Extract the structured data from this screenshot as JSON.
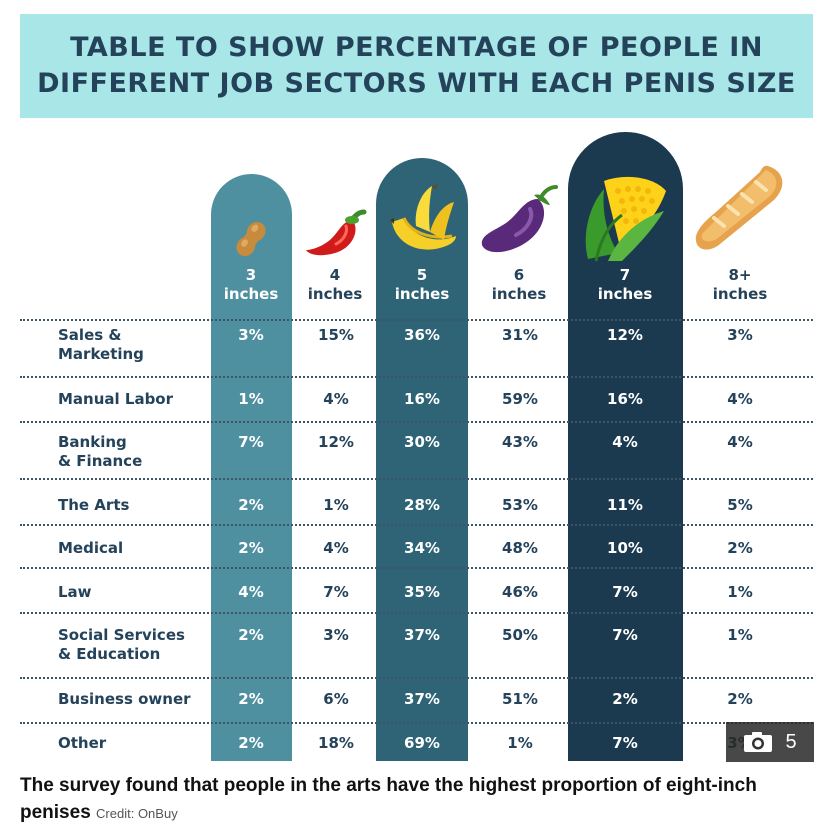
{
  "title_lines": [
    "TABLE TO SHOW PERCENTAGE OF PEOPLE IN",
    "DIFFERENT JOB SECTORS WITH EACH PENIS SIZE"
  ],
  "columns": [
    {
      "num": "3",
      "unit": "inches",
      "icon": "peanut-icon"
    },
    {
      "num": "4",
      "unit": "inches",
      "icon": "chili-pepper-icon"
    },
    {
      "num": "5",
      "unit": "inches",
      "icon": "banana-icon"
    },
    {
      "num": "6",
      "unit": "inches",
      "icon": "eggplant-icon"
    },
    {
      "num": "7",
      "unit": "inches",
      "icon": "corn-icon"
    },
    {
      "num": "8+",
      "unit": "inches",
      "icon": "baguette-icon"
    }
  ],
  "rows": [
    {
      "label_lines": [
        "Sales &",
        "Marketing"
      ],
      "values": [
        "3%",
        "15%",
        "36%",
        "31%",
        "12%",
        "3%"
      ]
    },
    {
      "label_lines": [
        "Manual Labor"
      ],
      "values": [
        "1%",
        "4%",
        "16%",
        "59%",
        "16%",
        "4%"
      ]
    },
    {
      "label_lines": [
        "Banking",
        "& Finance"
      ],
      "values": [
        "7%",
        "12%",
        "30%",
        "43%",
        "4%",
        "4%"
      ]
    },
    {
      "label_lines": [
        "The Arts"
      ],
      "values": [
        "2%",
        "1%",
        "28%",
        "53%",
        "11%",
        "5%"
      ]
    },
    {
      "label_lines": [
        "Medical"
      ],
      "values": [
        "2%",
        "4%",
        "34%",
        "48%",
        "10%",
        "2%"
      ]
    },
    {
      "label_lines": [
        "Law"
      ],
      "values": [
        "4%",
        "7%",
        "35%",
        "46%",
        "7%",
        "1%"
      ]
    },
    {
      "label_lines": [
        "Social Services",
        "& Education"
      ],
      "values": [
        "2%",
        "3%",
        "37%",
        "50%",
        "7%",
        "1%"
      ]
    },
    {
      "label_lines": [
        "Business owner"
      ],
      "values": [
        "2%",
        "6%",
        "37%",
        "51%",
        "2%",
        "2%"
      ]
    },
    {
      "label_lines": [
        "Other"
      ],
      "values": [
        "2%",
        "18%",
        "69%",
        "1%",
        "7%",
        "3%"
      ]
    }
  ],
  "chart_data": {
    "type": "table",
    "title": "TABLE TO SHOW PERCENTAGE OF PEOPLE IN DIFFERENT JOB SECTORS WITH EACH PENIS SIZE",
    "categories": [
      "Sales & Marketing",
      "Manual Labor",
      "Banking & Finance",
      "The Arts",
      "Medical",
      "Law",
      "Social Services & Education",
      "Business owner",
      "Other"
    ],
    "series": [
      {
        "name": "3 inches",
        "values": [
          3,
          1,
          7,
          2,
          2,
          4,
          2,
          2,
          2
        ]
      },
      {
        "name": "4 inches",
        "values": [
          15,
          4,
          12,
          1,
          4,
          7,
          3,
          6,
          18
        ]
      },
      {
        "name": "5 inches",
        "values": [
          36,
          16,
          30,
          28,
          34,
          35,
          37,
          37,
          69
        ]
      },
      {
        "name": "6 inches",
        "values": [
          31,
          59,
          43,
          53,
          48,
          46,
          50,
          51,
          1
        ]
      },
      {
        "name": "7 inches",
        "values": [
          12,
          16,
          4,
          11,
          10,
          7,
          7,
          2,
          7
        ]
      },
      {
        "name": "8+ inches",
        "values": [
          3,
          4,
          4,
          5,
          2,
          1,
          1,
          2,
          3
        ]
      }
    ]
  },
  "colors": {
    "title_bg": "#a8e6e8",
    "text_dark": "#24435a",
    "pillar_3": "#4f90a0",
    "pillar_5": "#2e6475",
    "pillar_7": "#1b3a50"
  },
  "gallery": {
    "count": "5",
    "icon": "camera-icon"
  },
  "caption": {
    "text": "The survey found that people in the arts have the highest proportion of eight-inch penises",
    "credit": "Credit: OnBuy"
  }
}
